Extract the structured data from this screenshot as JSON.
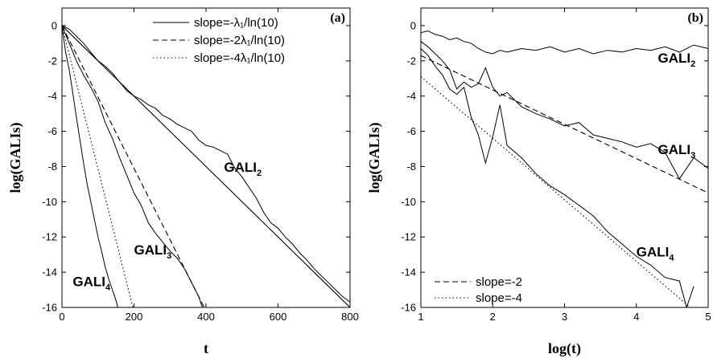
{
  "chart_data": [
    {
      "type": "line",
      "panel_label": "(a)",
      "xlabel": "t",
      "ylabel": "log(GALIs)",
      "xlim": [
        0,
        800
      ],
      "ylim": [
        -16,
        1
      ],
      "xticks": [
        0,
        200,
        400,
        600,
        800
      ],
      "yticks": [
        0,
        -2,
        -4,
        -6,
        -8,
        -10,
        -12,
        -14,
        -16
      ],
      "legend_position": "top-right",
      "legend": [
        {
          "label": "slope=-λ₁/ln(10)",
          "style": "solid"
        },
        {
          "label": "slope=-2λ₁/ln(10)",
          "style": "dashed"
        },
        {
          "label": "slope=-4λ₁/ln(10)",
          "style": "dotted"
        }
      ],
      "annotations": [
        {
          "text": "GALI",
          "sub": "2",
          "x": 450,
          "y": -8.3
        },
        {
          "text": "GALI",
          "sub": "3",
          "x": 200,
          "y": -13.0
        },
        {
          "text": "GALI",
          "sub": "4",
          "x": 30,
          "y": -14.8
        }
      ],
      "reference_lines": [
        {
          "style": "solid",
          "x": [
            0,
            800
          ],
          "y": [
            0,
            -16
          ]
        },
        {
          "style": "dashed",
          "x": [
            0,
            395
          ],
          "y": [
            0,
            -16
          ]
        },
        {
          "style": "dotted",
          "x": [
            0,
            197
          ],
          "y": [
            0,
            -16
          ]
        }
      ],
      "series": [
        {
          "role": "GALI2",
          "x": [
            0,
            20,
            40,
            60,
            80,
            100,
            120,
            140,
            160,
            180,
            200,
            220,
            240,
            260,
            280,
            300,
            320,
            340,
            360,
            380,
            400,
            420,
            440,
            460,
            480,
            500,
            520,
            540,
            560,
            580,
            600,
            620,
            640,
            660,
            680,
            700,
            720,
            740,
            760,
            780,
            800
          ],
          "y": [
            0,
            -0.2,
            -0.6,
            -1.0,
            -1.5,
            -2.0,
            -2.3,
            -2.7,
            -3.2,
            -3.7,
            -4.0,
            -4.2,
            -4.5,
            -4.7,
            -5.1,
            -5.3,
            -5.6,
            -5.8,
            -6.0,
            -6.5,
            -6.8,
            -6.9,
            -7.1,
            -7.3,
            -8.1,
            -8.6,
            -9.2,
            -9.8,
            -10.6,
            -11.2,
            -11.5,
            -12.0,
            -12.4,
            -12.9,
            -13.3,
            -13.8,
            -14.2,
            -14.6,
            -15.0,
            -15.4,
            -15.7
          ]
        },
        {
          "role": "GALI3",
          "x": [
            0,
            20,
            40,
            60,
            80,
            100,
            120,
            140,
            160,
            180,
            200,
            220,
            240,
            260,
            280,
            300,
            320,
            340,
            360,
            380,
            390
          ],
          "y": [
            0,
            -1.0,
            -2.0,
            -2.8,
            -3.5,
            -4.3,
            -5.5,
            -6.4,
            -7.5,
            -8.5,
            -9.5,
            -10.2,
            -11.2,
            -11.8,
            -12.3,
            -12.8,
            -13.2,
            -13.8,
            -14.6,
            -15.4,
            -16.0
          ]
        },
        {
          "role": "GALI4",
          "x": [
            0,
            10,
            20,
            30,
            40,
            50,
            60,
            70,
            80,
            90,
            100,
            110,
            120,
            130,
            140,
            150,
            155
          ],
          "y": [
            0,
            -1.5,
            -2.5,
            -3.8,
            -5.2,
            -6.5,
            -7.8,
            -9.0,
            -10.0,
            -11.0,
            -12.0,
            -12.8,
            -13.7,
            -14.4,
            -15.0,
            -15.6,
            -16.0
          ]
        }
      ]
    },
    {
      "type": "line",
      "panel_label": "(b)",
      "xlabel": "log(t)",
      "ylabel": "log(GALIs)",
      "xlim": [
        1,
        5
      ],
      "ylim": [
        -16,
        1
      ],
      "xticks": [
        1,
        2,
        3,
        4,
        5
      ],
      "yticks": [
        0,
        -2,
        -4,
        -6,
        -8,
        -10,
        -12,
        -14,
        -16
      ],
      "legend_position": "bottom-left",
      "legend": [
        {
          "label": "slope=-2",
          "style": "dashed"
        },
        {
          "label": "slope=-4",
          "style": "dotted"
        }
      ],
      "annotations": [
        {
          "text": "GALI",
          "sub": "2",
          "x": 4.3,
          "y": -2.1
        },
        {
          "text": "GALI",
          "sub": "3",
          "x": 4.3,
          "y": -7.3
        },
        {
          "text": "GALI",
          "sub": "4",
          "x": 4.0,
          "y": -13.1
        }
      ],
      "reference_lines": [
        {
          "style": "dashed",
          "x": [
            1,
            5
          ],
          "y": [
            -1.7,
            -9.5
          ]
        },
        {
          "style": "dotted",
          "x": [
            1,
            4.75
          ],
          "y": [
            -2.9,
            -16.0
          ]
        }
      ],
      "series": [
        {
          "role": "GALI2",
          "x": [
            1.0,
            1.1,
            1.2,
            1.3,
            1.4,
            1.5,
            1.6,
            1.7,
            1.8,
            1.9,
            2.0,
            2.1,
            2.2,
            2.4,
            2.6,
            2.8,
            3.0,
            3.2,
            3.4,
            3.6,
            3.8,
            4.0,
            4.2,
            4.4,
            4.6,
            4.8,
            5.0
          ],
          "y": [
            -0.4,
            -0.3,
            -0.5,
            -0.6,
            -0.8,
            -0.7,
            -0.9,
            -1.0,
            -1.3,
            -1.5,
            -1.6,
            -1.4,
            -1.5,
            -1.3,
            -1.4,
            -1.2,
            -1.5,
            -1.3,
            -1.6,
            -1.4,
            -1.5,
            -1.3,
            -1.4,
            -1.2,
            -1.5,
            -1.1,
            -1.3
          ]
        },
        {
          "role": "GALI3",
          "x": [
            1.0,
            1.1,
            1.2,
            1.3,
            1.4,
            1.5,
            1.6,
            1.7,
            1.8,
            1.9,
            2.0,
            2.1,
            2.2,
            2.4,
            2.6,
            2.8,
            3.0,
            3.2,
            3.4,
            3.6,
            3.8,
            4.0,
            4.2,
            4.4,
            4.6,
            4.8,
            5.0
          ],
          "y": [
            -0.9,
            -1.2,
            -1.6,
            -2.0,
            -2.5,
            -3.6,
            -3.2,
            -3.5,
            -3.3,
            -2.4,
            -3.5,
            -4.0,
            -3.8,
            -4.6,
            -5.0,
            -5.3,
            -5.7,
            -5.5,
            -6.2,
            -6.4,
            -6.6,
            -6.9,
            -6.7,
            -7.2,
            -8.7,
            -7.5,
            -8.1
          ]
        },
        {
          "role": "GALI4",
          "x": [
            1.0,
            1.1,
            1.2,
            1.3,
            1.4,
            1.5,
            1.6,
            1.7,
            1.8,
            1.9,
            2.0,
            2.1,
            2.2,
            2.4,
            2.6,
            2.8,
            3.0,
            3.2,
            3.4,
            3.6,
            3.8,
            4.0,
            4.2,
            4.4,
            4.6,
            4.7,
            4.8
          ],
          "y": [
            -1.3,
            -1.7,
            -2.3,
            -2.8,
            -3.6,
            -3.9,
            -3.5,
            -5.2,
            -6.2,
            -7.8,
            -6.3,
            -4.5,
            -6.8,
            -7.5,
            -8.4,
            -9.1,
            -9.6,
            -10.2,
            -10.8,
            -11.7,
            -12.4,
            -13.1,
            -13.6,
            -14.3,
            -14.5,
            -16.0,
            -14.8
          ]
        }
      ]
    }
  ]
}
